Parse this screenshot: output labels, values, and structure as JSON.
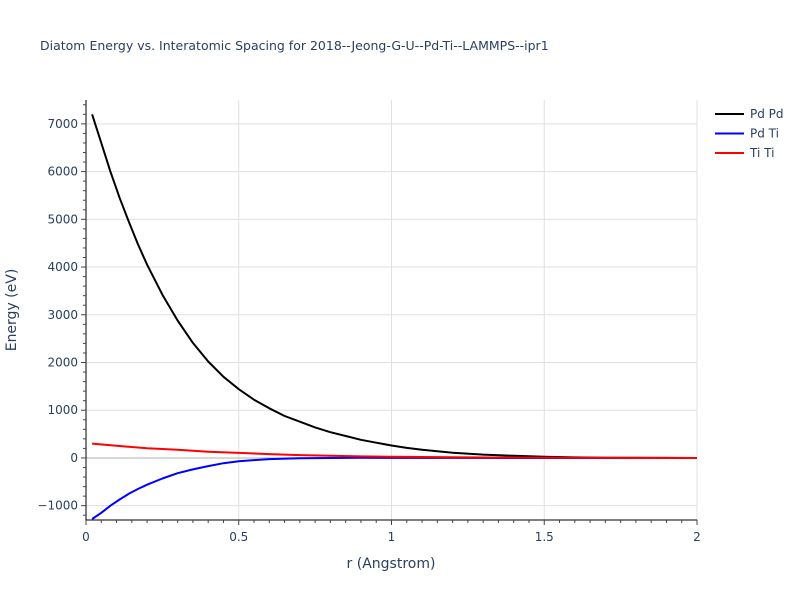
{
  "chart_data": {
    "type": "line",
    "title": "Diatom Energy vs. Interatomic Spacing for 2018--Jeong-G-U--Pd-Ti--LAMMPS--ipr1",
    "xlabel": "r (Angstrom)",
    "ylabel": "Energy (eV)",
    "xlim": [
      0,
      2
    ],
    "ylim": [
      -1300,
      7500
    ],
    "xticks": [
      0,
      0.5,
      1,
      1.5,
      2
    ],
    "xtick_labels": [
      "0",
      "0.5",
      "1",
      "1.5",
      "2"
    ],
    "yticks": [
      -1000,
      0,
      1000,
      2000,
      3000,
      4000,
      5000,
      6000,
      7000
    ],
    "ytick_labels": [
      "−1000",
      "0",
      "1000",
      "2000",
      "3000",
      "4000",
      "5000",
      "6000",
      "7000"
    ],
    "grid": true,
    "legend_position": "top-right",
    "series": [
      {
        "name": "Pd Pd",
        "color": "#000000",
        "x": [
          0.02,
          0.05,
          0.08,
          0.11,
          0.14,
          0.17,
          0.2,
          0.25,
          0.3,
          0.35,
          0.4,
          0.45,
          0.5,
          0.55,
          0.6,
          0.65,
          0.7,
          0.75,
          0.8,
          0.85,
          0.9,
          0.95,
          1.0,
          1.05,
          1.1,
          1.2,
          1.3,
          1.4,
          1.5,
          1.6,
          1.7,
          1.8,
          1.9,
          2.0
        ],
        "y": [
          7200,
          6600,
          6000,
          5450,
          4950,
          4480,
          4050,
          3420,
          2880,
          2410,
          2020,
          1700,
          1440,
          1220,
          1040,
          880,
          760,
          640,
          540,
          460,
          380,
          320,
          260,
          210,
          170,
          110,
          70,
          45,
          25,
          12,
          6,
          3,
          1,
          0
        ]
      },
      {
        "name": "Pd Ti",
        "color": "#0000ff",
        "x": [
          0.02,
          0.05,
          0.08,
          0.11,
          0.14,
          0.17,
          0.2,
          0.25,
          0.3,
          0.35,
          0.4,
          0.45,
          0.5,
          0.55,
          0.6,
          0.7,
          0.8,
          0.9,
          1.0,
          1.2,
          1.4,
          1.6,
          1.8,
          2.0
        ],
        "y": [
          -1280,
          -1150,
          -1000,
          -870,
          -750,
          -650,
          -560,
          -430,
          -320,
          -240,
          -170,
          -110,
          -70,
          -45,
          -25,
          -8,
          0,
          3,
          2,
          1,
          0,
          0,
          0,
          0
        ]
      },
      {
        "name": "Ti Ti",
        "color": "#ff0000",
        "x": [
          0.02,
          0.1,
          0.2,
          0.3,
          0.4,
          0.5,
          0.6,
          0.7,
          0.8,
          0.9,
          1.0,
          1.2,
          1.4,
          1.6,
          1.8,
          2.0
        ],
        "y": [
          300,
          255,
          205,
          170,
          130,
          105,
          80,
          60,
          45,
          33,
          25,
          15,
          8,
          4,
          2,
          0
        ]
      }
    ]
  }
}
